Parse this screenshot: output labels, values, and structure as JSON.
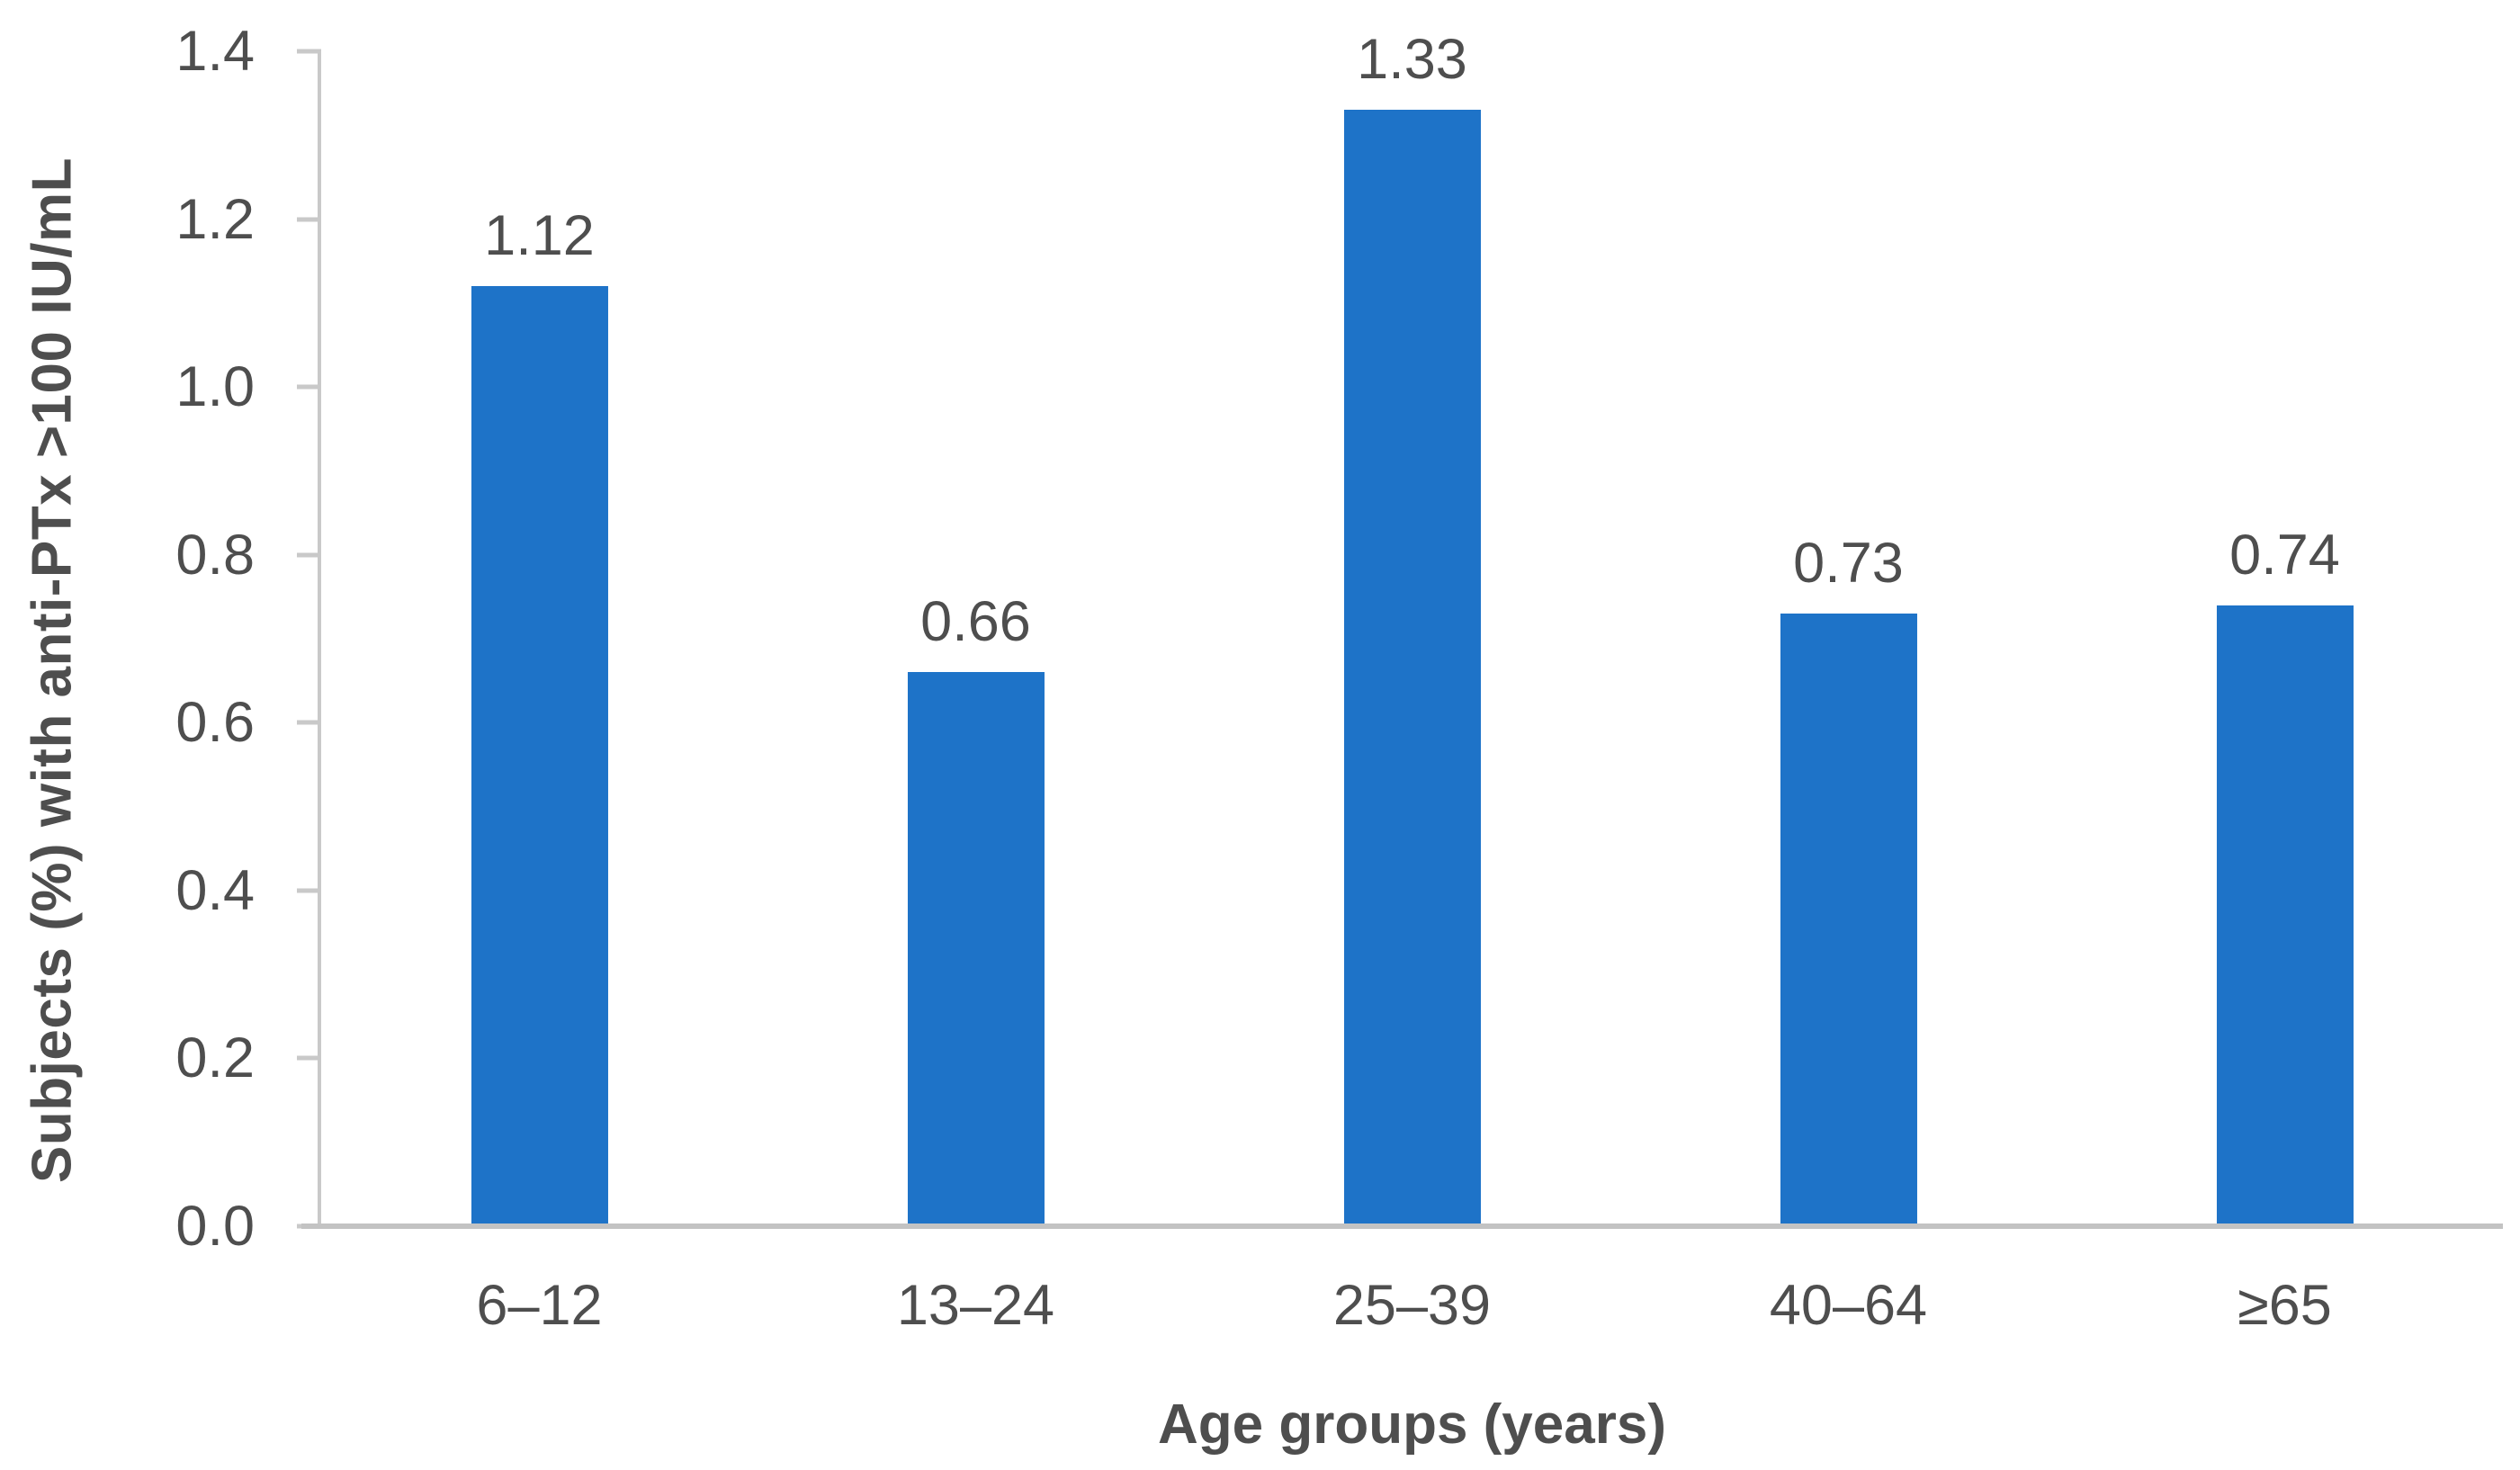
{
  "chart_data": {
    "type": "bar",
    "title": "",
    "categories": [
      "6–12",
      "13–24",
      "25–39",
      "40–64",
      "≥65"
    ],
    "values": [
      1.12,
      0.66,
      1.33,
      0.73,
      0.74
    ],
    "value_labels": [
      "1.12",
      "0.66",
      "1.33",
      "0.73",
      "0.74"
    ],
    "xlabel": "Age groups (years)",
    "ylabel": "Subjects (%) with anti-PTx >100 IU/mL",
    "ylim": [
      0,
      1.4
    ],
    "ytick_step": 0.2,
    "yticks": [
      "0.0",
      "0.2",
      "0.4",
      "0.6",
      "0.8",
      "1.0",
      "1.2",
      "1.4"
    ],
    "grid": false,
    "legend": false,
    "layout_hints": {
      "tick_marks": "outside",
      "value_labels_position": "above bars",
      "background": "#ffffff"
    },
    "colors": {
      "bar": "#1e73c8",
      "text": "#4e4e4e",
      "axis_line": "#c9c9c9",
      "baseline": "#c3c3c3"
    }
  }
}
